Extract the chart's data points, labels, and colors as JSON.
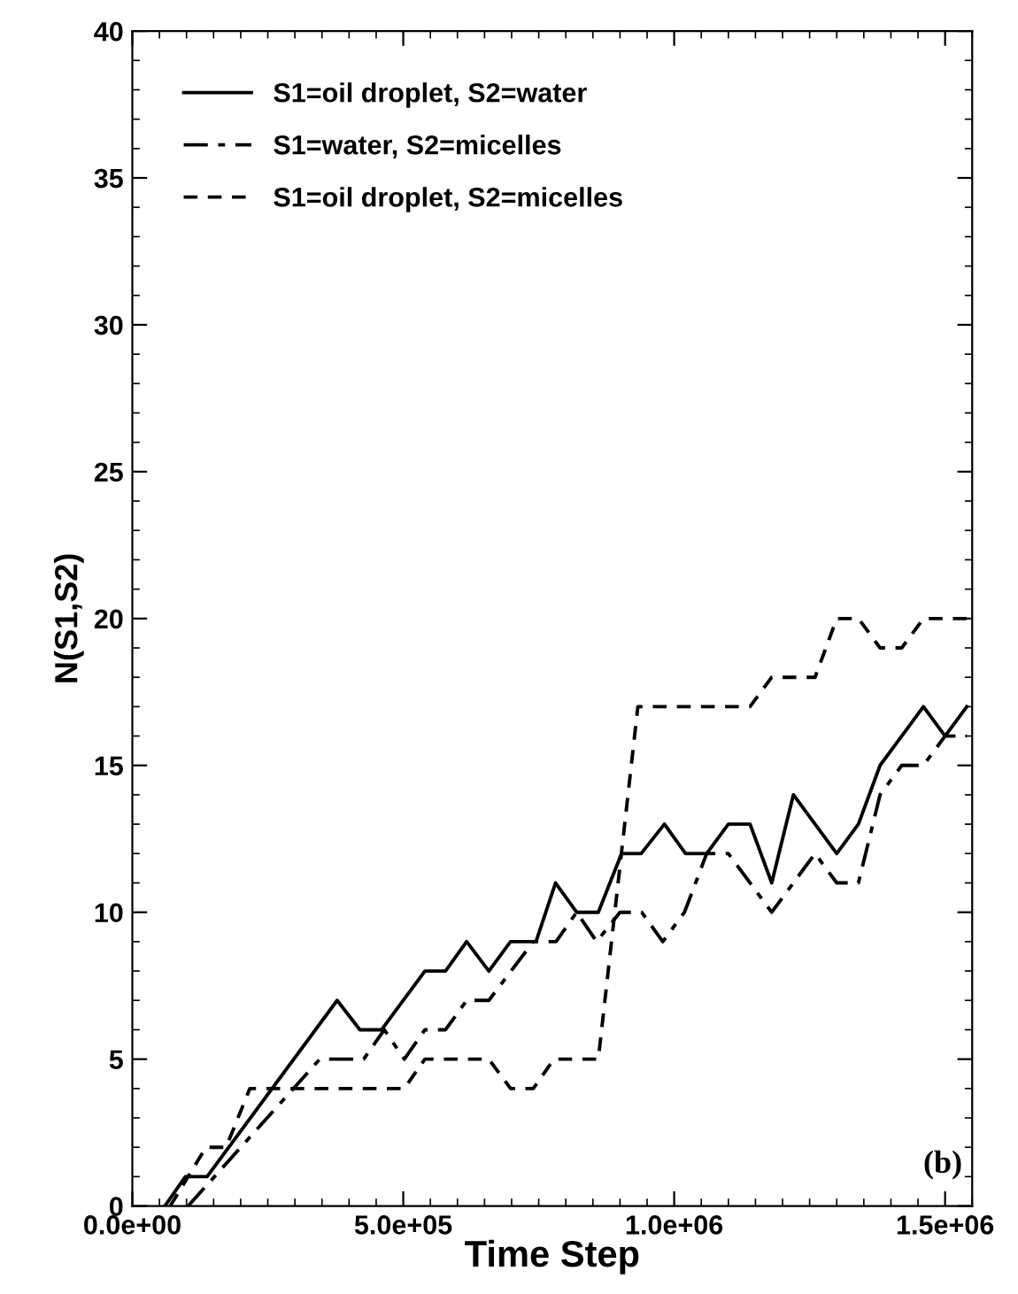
{
  "chart_data": {
    "type": "line",
    "xlabel": "Time Step",
    "ylabel": "N(S1,S2)",
    "xlim": [
      0,
      1550000
    ],
    "ylim": [
      0,
      40
    ],
    "xticks": [
      {
        "value": 0,
        "label": "0.0e+00"
      },
      {
        "value": 500000,
        "label": "5.0e+05"
      },
      {
        "value": 1000000,
        "label": "1.0e+06"
      },
      {
        "value": 1500000,
        "label": "1.5e+06"
      }
    ],
    "yticks": [
      0,
      5,
      10,
      15,
      20,
      25,
      30,
      35,
      40
    ],
    "grid": false,
    "legend": "top left",
    "marker": "none",
    "annotations": [
      "(b)"
    ],
    "series": [
      {
        "name": "S1=oil droplet, S2=water",
        "color": "#000000",
        "line_style": "solid",
        "x": [
          60000,
          98000,
          138000,
          378000,
          420000,
          460000,
          540000,
          578000,
          617000,
          658000,
          698000,
          745000,
          781000,
          820000,
          860000,
          903000,
          939000,
          982000,
          1021000,
          1060000,
          1100000,
          1140000,
          1180000,
          1220000,
          1300000,
          1340000,
          1380000,
          1460000,
          1500000,
          1540000
        ],
        "values": [
          0,
          1,
          1,
          7,
          6,
          6,
          8,
          8,
          9,
          8,
          9,
          9,
          11,
          10,
          10,
          12,
          12,
          13,
          12,
          12,
          13,
          13,
          11,
          14,
          12,
          13,
          15,
          17,
          16,
          17
        ]
      },
      {
        "name": "S1=water, S2=micelles",
        "color": "#000000",
        "line_style": "dashdot",
        "x": [
          103000,
          346000,
          427000,
          465000,
          502000,
          540000,
          578000,
          617000,
          658000,
          740000,
          782000,
          820000,
          857000,
          900000,
          940000,
          979000,
          1019000,
          1060000,
          1100000,
          1180000,
          1260000,
          1300000,
          1340000,
          1380000,
          1420000,
          1460000,
          1500000,
          1540000
        ],
        "values": [
          0,
          5,
          5,
          6,
          5,
          6,
          6,
          7,
          7,
          9,
          9,
          10,
          9,
          10,
          10,
          9,
          10,
          12,
          12,
          10,
          12,
          11,
          11,
          14,
          15,
          15,
          16,
          16
        ]
      },
      {
        "name": "S1=oil droplet, S2=micelles",
        "color": "#000000",
        "line_style": "dashed",
        "x": [
          70000,
          136000,
          173000,
          217000,
          502000,
          540000,
          658000,
          698000,
          740000,
          778000,
          860000,
          933000,
          1140000,
          1180000,
          1260000,
          1300000,
          1340000,
          1380000,
          1420000,
          1460000,
          1540000
        ],
        "values": [
          0,
          2,
          2,
          4,
          4,
          5,
          5,
          4,
          4,
          5,
          5,
          17,
          17,
          18,
          18,
          20,
          20,
          19,
          19,
          20,
          20
        ]
      }
    ]
  }
}
